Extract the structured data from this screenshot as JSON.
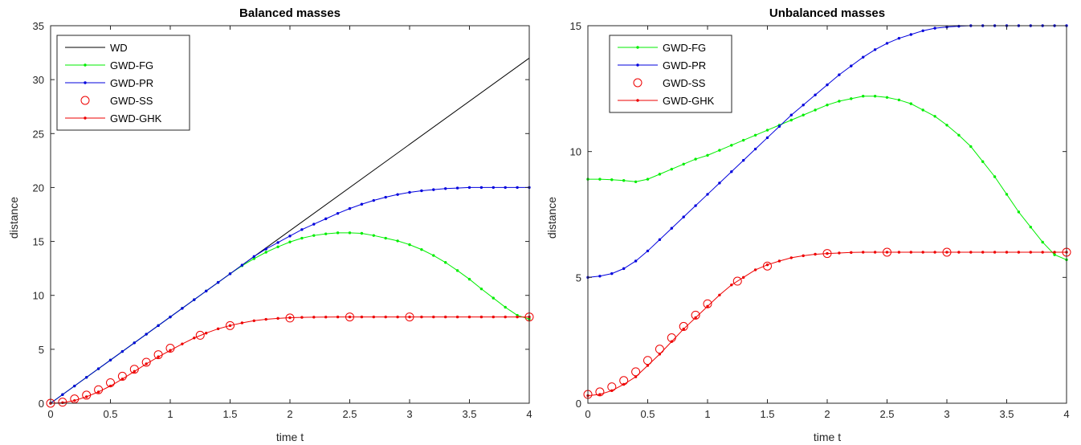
{
  "chart_data": [
    {
      "type": "line",
      "title": "Balanced masses",
      "xlabel": "time t",
      "ylabel": "distance",
      "xlim": [
        0,
        4
      ],
      "ylim": [
        0,
        35
      ],
      "xticks": [
        0,
        0.5,
        1,
        1.5,
        2,
        2.5,
        3,
        3.5,
        4
      ],
      "xtick_labels": [
        "0",
        "0.5",
        "1",
        "1.5",
        "2",
        "2.5",
        "3",
        "3.5",
        "4"
      ],
      "yticks": [
        0,
        5,
        10,
        15,
        20,
        25,
        30,
        35
      ],
      "ytick_labels": [
        "0",
        "5",
        "10",
        "15",
        "20",
        "25",
        "30",
        "35"
      ],
      "grid": false,
      "legend_position": "top-left",
      "series": [
        {
          "name": "WD",
          "color": "#000000",
          "style": "line",
          "x": [
            0,
            4
          ],
          "y": [
            0,
            32
          ]
        },
        {
          "name": "GWD-FG",
          "color": "#00ee00",
          "style": "line-dot",
          "x": [
            0,
            0.1,
            0.2,
            0.3,
            0.4,
            0.5,
            0.6,
            0.7,
            0.8,
            0.9,
            1,
            1.1,
            1.2,
            1.3,
            1.4,
            1.5,
            1.6,
            1.7,
            1.8,
            1.9,
            2,
            2.1,
            2.2,
            2.3,
            2.4,
            2.5,
            2.6,
            2.7,
            2.8,
            2.9,
            3,
            3.1,
            3.2,
            3.3,
            3.4,
            3.5,
            3.6,
            3.7,
            3.8,
            3.9,
            4
          ],
          "y": [
            0,
            0.8,
            1.6,
            2.4,
            3.2,
            4,
            4.8,
            5.6,
            6.4,
            7.2,
            8,
            8.8,
            9.6,
            10.4,
            11.2,
            12,
            12.75,
            13.4,
            14,
            14.5,
            14.95,
            15.3,
            15.55,
            15.7,
            15.8,
            15.8,
            15.75,
            15.55,
            15.3,
            15.05,
            14.7,
            14.25,
            13.7,
            13.05,
            12.3,
            11.5,
            10.6,
            9.75,
            8.9,
            8.15,
            7.8
          ]
        },
        {
          "name": "GWD-PR",
          "color": "#0000dd",
          "style": "line-dot",
          "x": [
            0,
            0.1,
            0.2,
            0.3,
            0.4,
            0.5,
            0.6,
            0.7,
            0.8,
            0.9,
            1,
            1.1,
            1.2,
            1.3,
            1.4,
            1.5,
            1.6,
            1.7,
            1.8,
            1.9,
            2,
            2.1,
            2.2,
            2.3,
            2.4,
            2.5,
            2.6,
            2.7,
            2.8,
            2.9,
            3,
            3.1,
            3.2,
            3.3,
            3.4,
            3.5,
            3.6,
            3.7,
            3.8,
            3.9,
            4
          ],
          "y": [
            0,
            0.8,
            1.6,
            2.4,
            3.2,
            4,
            4.8,
            5.6,
            6.4,
            7.2,
            8,
            8.8,
            9.6,
            10.4,
            11.2,
            12,
            12.8,
            13.6,
            14.3,
            14.9,
            15.5,
            16.1,
            16.6,
            17.1,
            17.6,
            18.05,
            18.45,
            18.8,
            19.1,
            19.35,
            19.55,
            19.7,
            19.8,
            19.9,
            19.95,
            20,
            20,
            20,
            20,
            20,
            20
          ]
        },
        {
          "name": "GWD-SS",
          "color": "#ee0000",
          "style": "circle",
          "x": [
            0,
            0.1,
            0.2,
            0.3,
            0.4,
            0.5,
            0.6,
            0.7,
            0.8,
            0.9,
            1,
            1.25,
            1.5,
            2,
            2.5,
            3,
            4
          ],
          "y": [
            0,
            0.1,
            0.4,
            0.75,
            1.25,
            1.9,
            2.5,
            3.15,
            3.8,
            4.5,
            5.1,
            6.3,
            7.2,
            7.9,
            8,
            8,
            8
          ]
        },
        {
          "name": "GWD-GHK",
          "color": "#ee0000",
          "style": "line-dot",
          "x": [
            0,
            0.1,
            0.2,
            0.3,
            0.4,
            0.5,
            0.6,
            0.7,
            0.8,
            0.9,
            1,
            1.1,
            1.2,
            1.3,
            1.4,
            1.5,
            1.6,
            1.7,
            1.8,
            1.9,
            2,
            2.1,
            2.2,
            2.3,
            2.4,
            2.5,
            2.6,
            2.7,
            2.8,
            2.9,
            3,
            3.1,
            3.2,
            3.3,
            3.4,
            3.5,
            3.6,
            3.7,
            3.8,
            3.9,
            4
          ],
          "y": [
            0,
            0.05,
            0.25,
            0.6,
            1.05,
            1.6,
            2.25,
            2.95,
            3.65,
            4.3,
            4.9,
            5.5,
            6.05,
            6.5,
            6.9,
            7.2,
            7.45,
            7.65,
            7.78,
            7.87,
            7.93,
            7.96,
            7.98,
            7.99,
            8,
            8,
            8,
            8,
            8,
            8,
            8,
            8,
            8,
            8,
            8,
            8,
            8,
            8,
            8,
            8,
            8
          ]
        }
      ]
    },
    {
      "type": "line",
      "title": "Unbalanced masses",
      "xlabel": "time t",
      "ylabel": "distance",
      "xlim": [
        0,
        4
      ],
      "ylim": [
        0,
        15
      ],
      "xticks": [
        0,
        0.5,
        1,
        1.5,
        2,
        2.5,
        3,
        3.5,
        4
      ],
      "xtick_labels": [
        "0",
        "0.5",
        "1",
        "1.5",
        "2",
        "2.5",
        "3",
        "3.5",
        "4"
      ],
      "yticks": [
        0,
        5,
        10,
        15
      ],
      "ytick_labels": [
        "0",
        "5",
        "10",
        "15"
      ],
      "grid": false,
      "legend_position": "top-left",
      "series": [
        {
          "name": "GWD-FG",
          "color": "#00ee00",
          "style": "line-dot",
          "x": [
            0,
            0.1,
            0.2,
            0.3,
            0.4,
            0.5,
            0.6,
            0.7,
            0.8,
            0.9,
            1,
            1.1,
            1.2,
            1.3,
            1.4,
            1.5,
            1.6,
            1.7,
            1.8,
            1.9,
            2,
            2.1,
            2.2,
            2.3,
            2.4,
            2.5,
            2.6,
            2.7,
            2.8,
            2.9,
            3,
            3.1,
            3.2,
            3.3,
            3.4,
            3.5,
            3.6,
            3.7,
            3.8,
            3.9,
            4
          ],
          "y": [
            8.9,
            8.9,
            8.88,
            8.85,
            8.8,
            8.9,
            9.1,
            9.3,
            9.5,
            9.7,
            9.85,
            10.05,
            10.25,
            10.45,
            10.65,
            10.85,
            11.05,
            11.25,
            11.45,
            11.65,
            11.85,
            12,
            12.1,
            12.2,
            12.2,
            12.15,
            12.05,
            11.9,
            11.65,
            11.4,
            11.05,
            10.65,
            10.2,
            9.6,
            9,
            8.3,
            7.6,
            7,
            6.4,
            5.9,
            5.7
          ]
        },
        {
          "name": "GWD-PR",
          "color": "#0000dd",
          "style": "line-dot",
          "x": [
            0,
            0.1,
            0.2,
            0.3,
            0.4,
            0.5,
            0.6,
            0.7,
            0.8,
            0.9,
            1,
            1.1,
            1.2,
            1.3,
            1.4,
            1.5,
            1.6,
            1.7,
            1.8,
            1.9,
            2,
            2.1,
            2.2,
            2.3,
            2.4,
            2.5,
            2.6,
            2.7,
            2.8,
            2.9,
            3,
            3.1,
            3.2,
            3.3,
            3.4,
            3.5,
            3.6,
            3.7,
            3.8,
            3.9,
            4
          ],
          "y": [
            5,
            5.05,
            5.15,
            5.35,
            5.65,
            6.05,
            6.5,
            6.95,
            7.4,
            7.85,
            8.3,
            8.75,
            9.2,
            9.65,
            10.1,
            10.55,
            11,
            11.45,
            11.85,
            12.25,
            12.65,
            13.05,
            13.4,
            13.75,
            14.05,
            14.3,
            14.5,
            14.65,
            14.8,
            14.9,
            14.95,
            14.98,
            15,
            15,
            15,
            15,
            15,
            15,
            15,
            15,
            15
          ]
        },
        {
          "name": "GWD-SS",
          "color": "#ee0000",
          "style": "circle",
          "x": [
            0,
            0.1,
            0.2,
            0.3,
            0.4,
            0.5,
            0.6,
            0.7,
            0.8,
            0.9,
            1,
            1.25,
            1.5,
            2,
            2.5,
            3,
            4
          ],
          "y": [
            0.35,
            0.45,
            0.65,
            0.9,
            1.25,
            1.7,
            2.15,
            2.6,
            3.05,
            3.5,
            3.95,
            4.85,
            5.45,
            5.95,
            6,
            6,
            6
          ]
        },
        {
          "name": "GWD-GHK",
          "color": "#ee0000",
          "style": "line-dot",
          "x": [
            0,
            0.1,
            0.2,
            0.3,
            0.4,
            0.5,
            0.6,
            0.7,
            0.8,
            0.9,
            1,
            1.1,
            1.2,
            1.3,
            1.4,
            1.5,
            1.6,
            1.7,
            1.8,
            1.9,
            2,
            2.1,
            2.2,
            2.3,
            2.4,
            2.5,
            2.6,
            2.7,
            2.8,
            2.9,
            3,
            3.1,
            3.2,
            3.3,
            3.4,
            3.5,
            3.6,
            3.7,
            3.8,
            3.9,
            4
          ],
          "y": [
            0.3,
            0.35,
            0.5,
            0.75,
            1.05,
            1.5,
            1.95,
            2.45,
            2.95,
            3.4,
            3.85,
            4.3,
            4.7,
            5,
            5.3,
            5.5,
            5.65,
            5.78,
            5.86,
            5.92,
            5.95,
            5.97,
            5.99,
            6,
            6,
            6,
            6,
            6,
            6,
            6,
            6,
            6,
            6,
            6,
            6,
            6,
            6,
            6,
            6,
            6,
            6
          ]
        }
      ]
    }
  ]
}
